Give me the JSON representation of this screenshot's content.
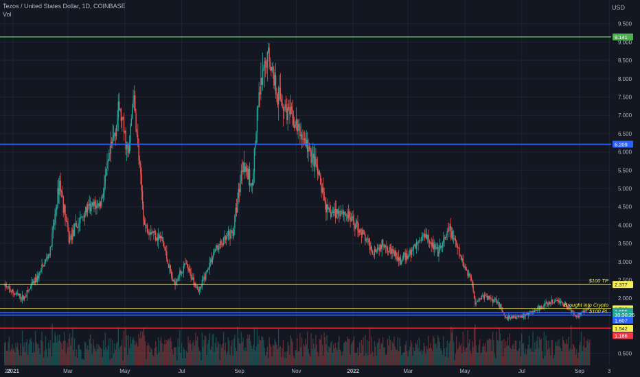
{
  "header": {
    "symbol_title": "Tezos / United States Dollar, 1D, COINBASE",
    "volume_label": "Vol",
    "currency": "USD"
  },
  "colors": {
    "background": "#131722",
    "grid": "#1f2433",
    "up_candle": "#26a69a",
    "down_candle": "#ef5350",
    "line_top": "#4caf50",
    "line_blue": "#2962ff",
    "line_yellow": "#f5f05a",
    "line_red": "#f23645",
    "axis_text": "#b2b5be"
  },
  "chart_data": {
    "type": "candlestick",
    "title": "Tezos / United States Dollar, 1D, COINBASE",
    "y_unit": "USD",
    "ylim": [
      0.3,
      9.7
    ],
    "y_ticks": [
      "9.500",
      "9.000",
      "8.500",
      "8.000",
      "7.500",
      "7.000",
      "6.500",
      "6.000",
      "5.500",
      "5.000",
      "4.500",
      "4.000",
      "3.500",
      "3.000",
      "2.500",
      "2.000",
      "0.500"
    ],
    "x_ticks": [
      "23",
      "2021",
      "Mar",
      "May",
      "Jul",
      "Sep",
      "Nov",
      "2022",
      "Mar",
      "May",
      "Jul",
      "Sep",
      "3"
    ],
    "price_path": [
      [
        "2020-12-23",
        2.35
      ],
      [
        "2021-01-01",
        2.15
      ],
      [
        "2021-01-12",
        2.0
      ],
      [
        "2021-01-28",
        2.6
      ],
      [
        "2021-02-10",
        3.3
      ],
      [
        "2021-02-20",
        5.2
      ],
      [
        "2021-03-02",
        3.6
      ],
      [
        "2021-03-20",
        4.4
      ],
      [
        "2021-04-05",
        4.6
      ],
      [
        "2021-04-25",
        7.2
      ],
      [
        "2021-05-05",
        5.9
      ],
      [
        "2021-05-10",
        7.6
      ],
      [
        "2021-05-22",
        4.0
      ],
      [
        "2021-06-10",
        3.6
      ],
      [
        "2021-06-22",
        2.4
      ],
      [
        "2021-07-05",
        2.9
      ],
      [
        "2021-07-20",
        2.2
      ],
      [
        "2021-08-05",
        3.3
      ],
      [
        "2021-08-25",
        3.8
      ],
      [
        "2021-09-05",
        5.8
      ],
      [
        "2021-09-14",
        5.0
      ],
      [
        "2021-09-22",
        7.5
      ],
      [
        "2021-10-02",
        8.7
      ],
      [
        "2021-10-12",
        7.6
      ],
      [
        "2021-10-25",
        7.0
      ],
      [
        "2021-11-10",
        6.3
      ],
      [
        "2021-11-22",
        5.6
      ],
      [
        "2021-12-05",
        4.3
      ],
      [
        "2021-12-20",
        4.4
      ],
      [
        "2022-01-05",
        4.0
      ],
      [
        "2022-01-22",
        3.3
      ],
      [
        "2022-02-05",
        3.5
      ],
      [
        "2022-02-20",
        3.0
      ],
      [
        "2022-03-05",
        3.3
      ],
      [
        "2022-03-20",
        3.8
      ],
      [
        "2022-04-02",
        3.2
      ],
      [
        "2022-04-15",
        3.9
      ],
      [
        "2022-04-28",
        3.0
      ],
      [
        "2022-05-08",
        2.5
      ],
      [
        "2022-05-12",
        1.9
      ],
      [
        "2022-05-20",
        2.05
      ],
      [
        "2022-06-05",
        1.95
      ],
      [
        "2022-06-13",
        1.45
      ],
      [
        "2022-06-28",
        1.5
      ],
      [
        "2022-07-10",
        1.6
      ],
      [
        "2022-07-25",
        1.8
      ],
      [
        "2022-08-08",
        1.95
      ],
      [
        "2022-08-20",
        1.75
      ],
      [
        "2022-08-28",
        1.52
      ],
      [
        "2022-09-05",
        1.6
      ],
      [
        "2022-09-12",
        1.75
      ]
    ],
    "horizontal_lines": [
      {
        "price": 9.141,
        "label": "9.141",
        "color": "#4caf50"
      },
      {
        "price": 6.209,
        "label": "6.209",
        "color": "#2962ff"
      },
      {
        "price": 2.377,
        "label": "2.377",
        "color": "#f5f05a"
      },
      {
        "price": 1.713,
        "label": "1.713",
        "color": "#f5f05a"
      },
      {
        "price": 1.607,
        "label": "1.607",
        "color": "#2962ff"
      },
      {
        "price": 1.542,
        "label": "1.542",
        "color": "#2962ff"
      },
      {
        "price": 1.186,
        "label": "1.186",
        "color": "#f23645"
      }
    ],
    "annotations": [
      {
        "text": "$100 TP",
        "price": 2.377
      },
      {
        "text": "Brought into Crypto",
        "price": 1.713
      },
      {
        "text": "$100 PL",
        "price": 1.542
      }
    ],
    "price_tags": [
      {
        "label": "9.141",
        "price": 9.141,
        "bg": "#4caf50",
        "fg": "#ffffff"
      },
      {
        "label": "6.209",
        "price": 6.209,
        "bg": "#2962ff",
        "fg": "#ffffff"
      },
      {
        "label": "2.377",
        "price": 2.377,
        "bg": "#f5f05a",
        "fg": "#131722"
      },
      {
        "label": "1.713",
        "price": 1.713,
        "bg": "#f5f05a",
        "fg": "#131722"
      },
      {
        "label": "1.695",
        "price": 1.65,
        "bg": "#26a69a",
        "fg": "#ffffff"
      },
      {
        "label": "10:30:26",
        "price": 1.55,
        "bg": "#26a69a",
        "fg": "#ffffff"
      },
      {
        "label": "1.607",
        "price": 1.4,
        "bg": "#2962ff",
        "fg": "#ffffff"
      },
      {
        "label": "1.542",
        "price": 1.18,
        "bg": "#f5f05a",
        "fg": "#131722"
      },
      {
        "label": "1.186",
        "price": 0.98,
        "bg": "#f23645",
        "fg": "#ffffff"
      }
    ]
  }
}
